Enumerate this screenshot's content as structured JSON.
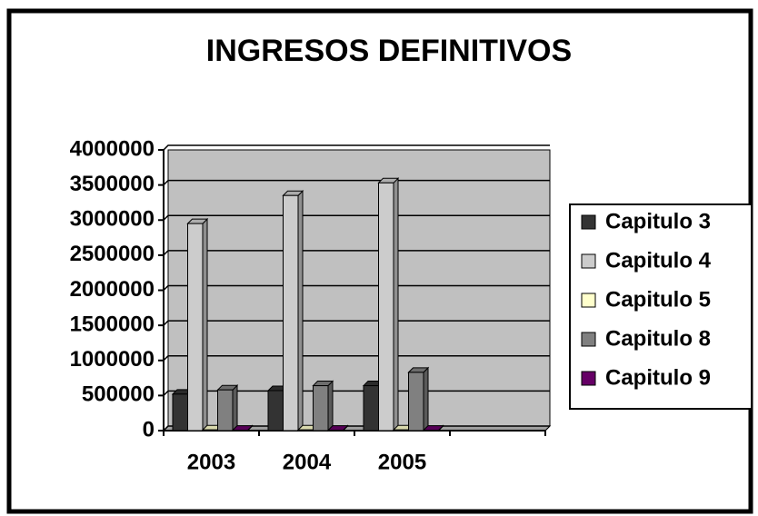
{
  "chart_data": {
    "type": "bar",
    "title": "INGRESOS DEFINITIVOS",
    "categories": [
      "2003",
      "2004",
      "2005",
      null
    ],
    "series": [
      {
        "name": "Capitulo 3",
        "color": "#333333",
        "values": [
          520000,
          570000,
          640000,
          null
        ]
      },
      {
        "name": "Capitulo 4",
        "color": "#cccccc",
        "values": [
          2950000,
          3350000,
          3530000,
          null
        ]
      },
      {
        "name": "Capitulo 5",
        "color": "#ffffcc",
        "values": [
          10000,
          10000,
          10000,
          null
        ]
      },
      {
        "name": "Capitulo 8",
        "color": "#808080",
        "values": [
          580000,
          640000,
          830000,
          null
        ]
      },
      {
        "name": "Capitulo 9",
        "color": "#660066",
        "values": [
          5000,
          5000,
          5000,
          null
        ]
      }
    ],
    "ylim": [
      0,
      4000000
    ],
    "yticks": [
      0,
      500000,
      1000000,
      1500000,
      2000000,
      2500000,
      3000000,
      3500000,
      4000000
    ],
    "grid": true,
    "legend": "right"
  }
}
